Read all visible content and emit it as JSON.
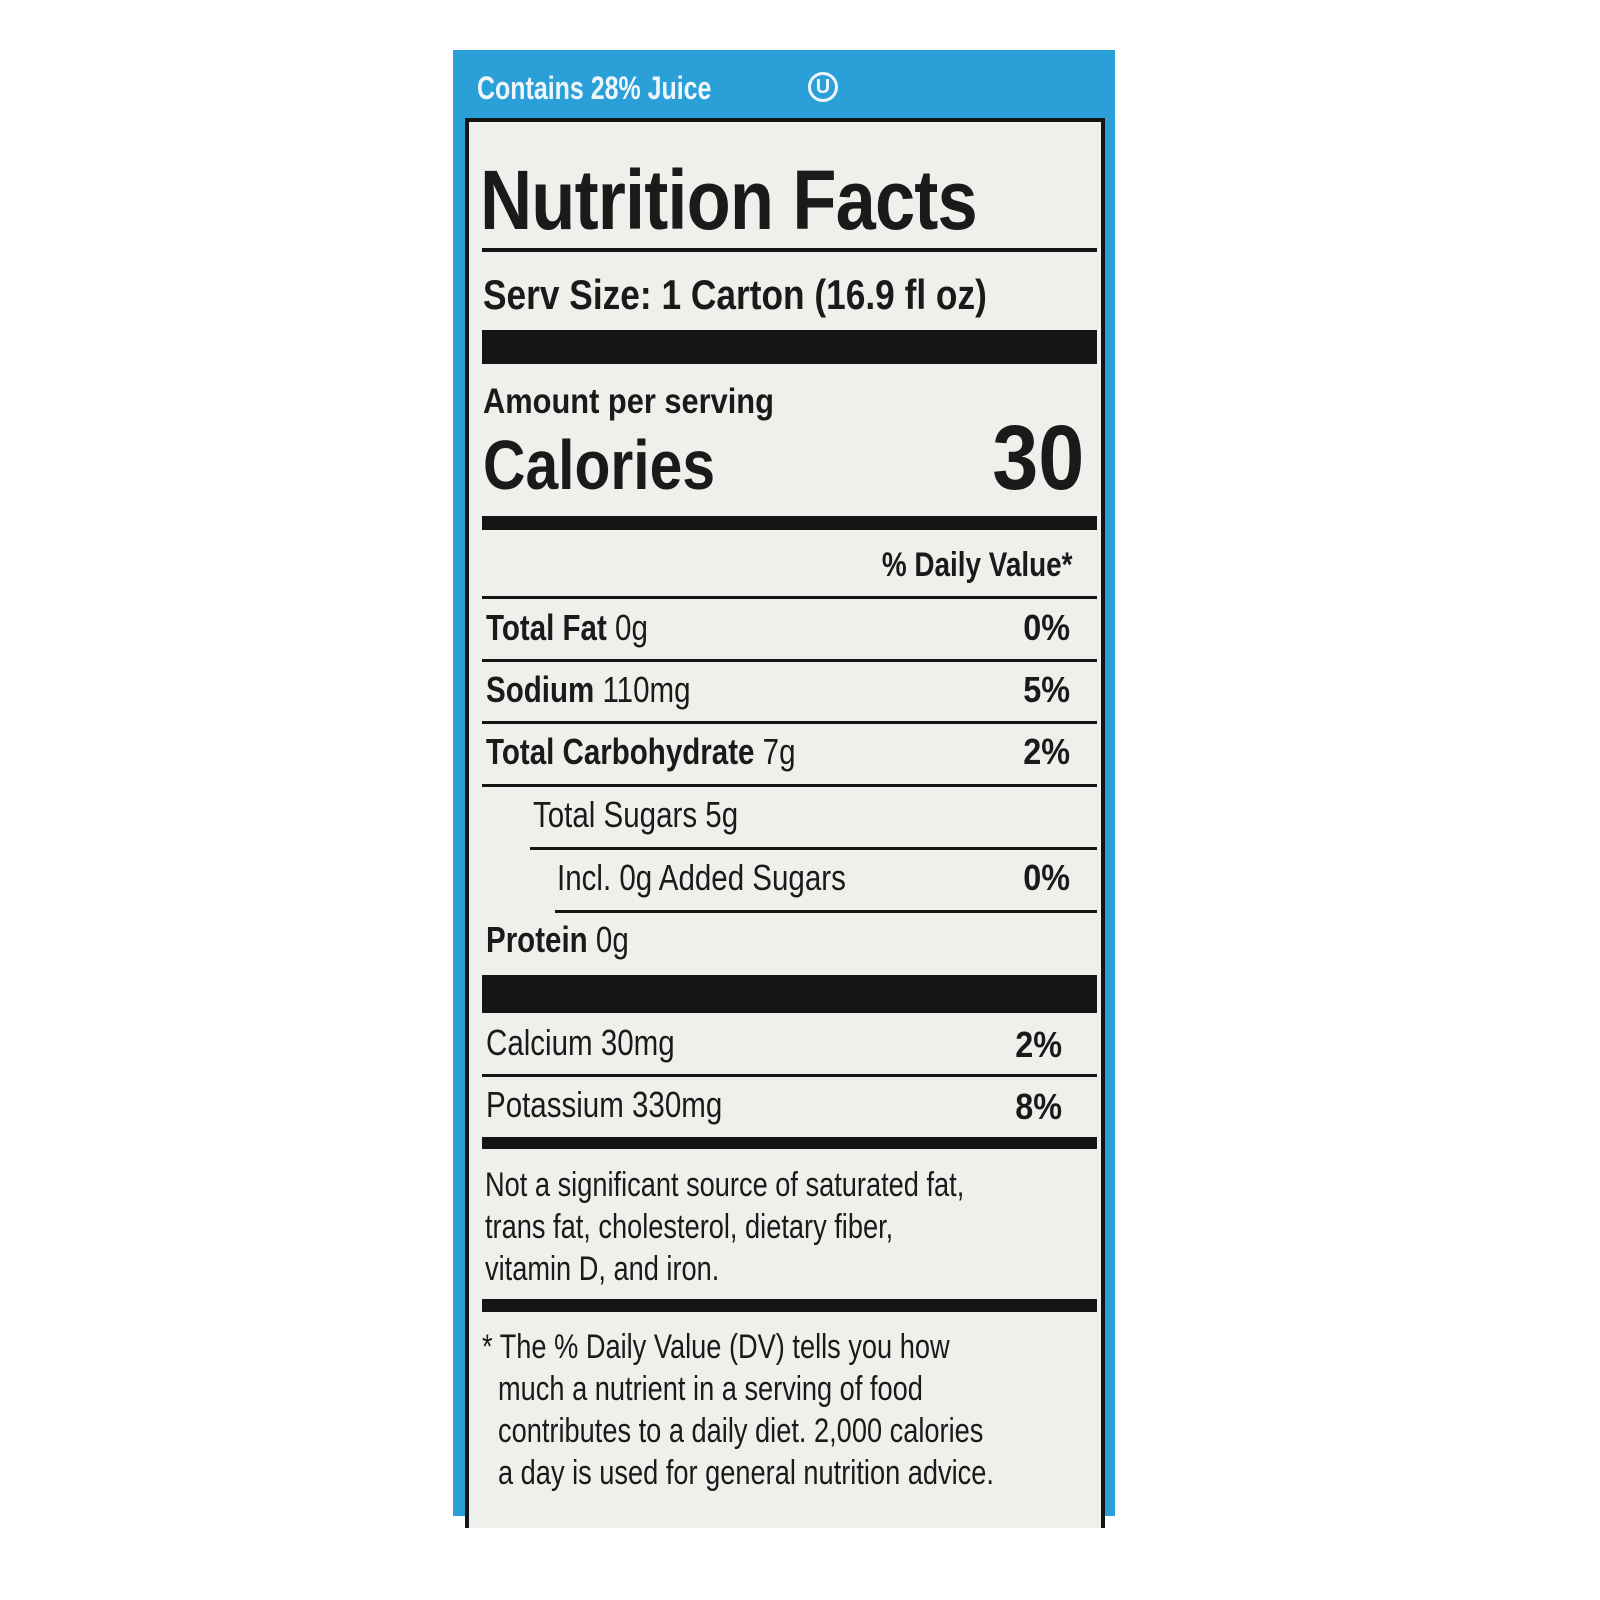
{
  "banner": {
    "text": "Contains 28% Juice",
    "kosher_symbol": "U"
  },
  "colors": {
    "banner_blue": "#2b9fd8",
    "panel": "#efefec",
    "ink": "#151515"
  },
  "label": {
    "title": "Nutrition Facts",
    "serving_size": "Serv Size: 1 Carton (16.9 fl oz)",
    "amount_per_serving": "Amount per serving",
    "calories_label": "Calories",
    "calories_value": "30",
    "dv_header": "% Daily Value*",
    "rows": [
      {
        "name": "Total Fat",
        "amount": "0g",
        "dv": "0%"
      },
      {
        "name": "Sodium",
        "amount": "110mg",
        "dv": "5%"
      },
      {
        "name": "Total Carbohydrate",
        "amount": "7g",
        "dv": "2%"
      },
      {
        "name": "Total Sugars 5g",
        "amount": "",
        "dv": ""
      },
      {
        "name": "Incl. 0g Added Sugars",
        "amount": "",
        "dv": "0%"
      },
      {
        "name": "Protein",
        "amount": "0g",
        "dv": ""
      },
      {
        "name": "Calcium 30mg",
        "amount": "",
        "dv": "2%"
      },
      {
        "name": "Potassium 330mg",
        "amount": "",
        "dv": "8%"
      }
    ],
    "not_significant": [
      "Not a significant source of saturated fat,",
      "trans fat, cholesterol, dietary fiber,",
      "vitamin D, and iron."
    ],
    "footnote": [
      "* The % Daily Value (DV) tells you how",
      "much a nutrient in a serving of food",
      "contributes to a daily diet. 2,000 calories",
      "a day is used for general nutrition advice."
    ]
  }
}
